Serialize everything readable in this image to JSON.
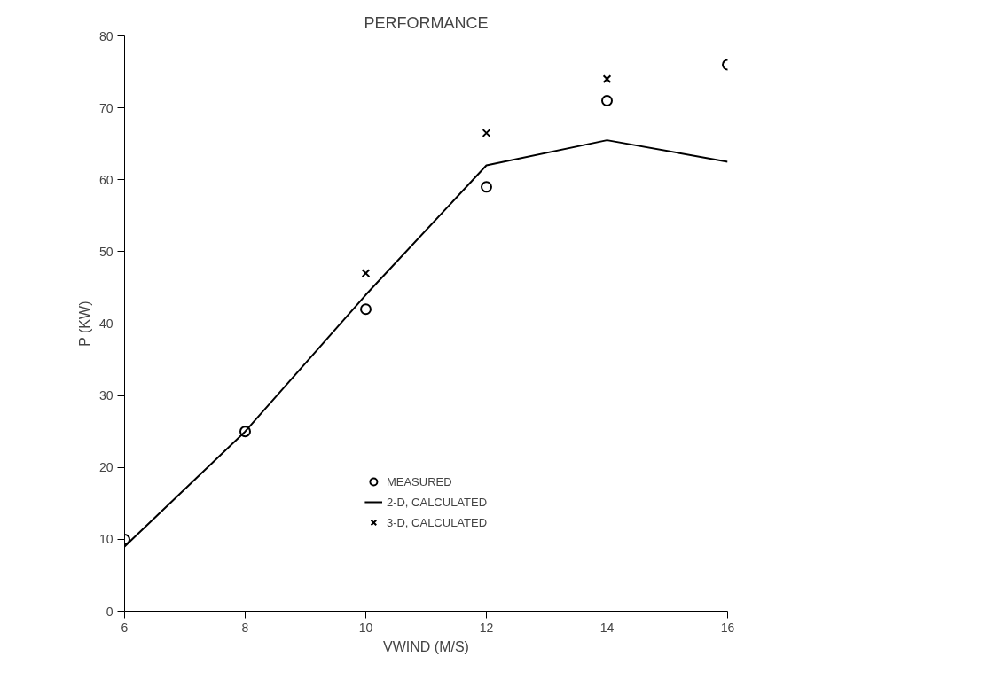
{
  "chart_data": {
    "type": "scatter",
    "title": "PERFORMANCE",
    "xlabel": "VWIND (M/S)",
    "ylabel": "P (KW)",
    "x": [
      6,
      8,
      10,
      12,
      14,
      16
    ],
    "series": [
      {
        "name": "MEASURED",
        "marker": "circle",
        "color": "#000000",
        "values": [
          10,
          25,
          42,
          59,
          71,
          76
        ]
      },
      {
        "name": "2-D, CALCULATED",
        "type": "line",
        "marker": "none",
        "line_style": "solid",
        "color": "#000000",
        "values": [
          9,
          25,
          44,
          62,
          65.5,
          62.5
        ]
      },
      {
        "name": "3-D, CALCULATED",
        "marker": "cross",
        "color": "#000000",
        "values": [
          null,
          null,
          47,
          66.5,
          74,
          null
        ]
      }
    ],
    "xlim": [
      6,
      16
    ],
    "ylim": [
      0,
      80
    ],
    "xticks": [
      6,
      8,
      10,
      12,
      14,
      16
    ],
    "yticks": [
      0,
      10,
      20,
      30,
      40,
      50,
      60,
      70,
      80
    ],
    "grid": false,
    "legend": "bottom"
  }
}
